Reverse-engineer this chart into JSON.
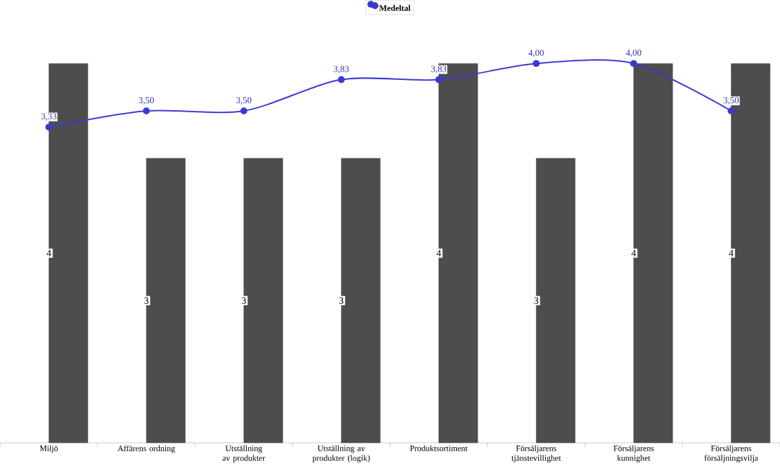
{
  "chart_data": {
    "type": "bar",
    "categories": [
      "Miljö",
      "Affärens ordning",
      "Utställning av produkter",
      "Utställning av produkter (logik)",
      "Produktsortiment",
      "Försäljarens tjänstevillighet",
      "Försäljarens kunnighet",
      "Försäljarens försäljningsvilja"
    ],
    "series": [
      {
        "color": "#4d4d4d",
        "values": [
          4,
          3,
          3,
          3,
          4,
          3,
          4,
          4
        ],
        "value_labels": [
          "4",
          "3",
          "3",
          "3",
          "4",
          "3",
          "4",
          "4"
        ]
      },
      {
        "type": "line",
        "name": "Medeltal",
        "color": "#3a3ad2",
        "values": [
          3.33,
          3.5,
          3.5,
          3.83,
          3.83,
          4.0,
          4.0,
          3.5
        ],
        "value_labels": [
          "3,33",
          "3,50",
          "3,50",
          "3,83",
          "3,83",
          "4,00",
          "4,00",
          "3,50"
        ]
      }
    ],
    "ylim": [
      0,
      4
    ],
    "marker": "circle",
    "line_style": "solid",
    "legend": "top"
  }
}
